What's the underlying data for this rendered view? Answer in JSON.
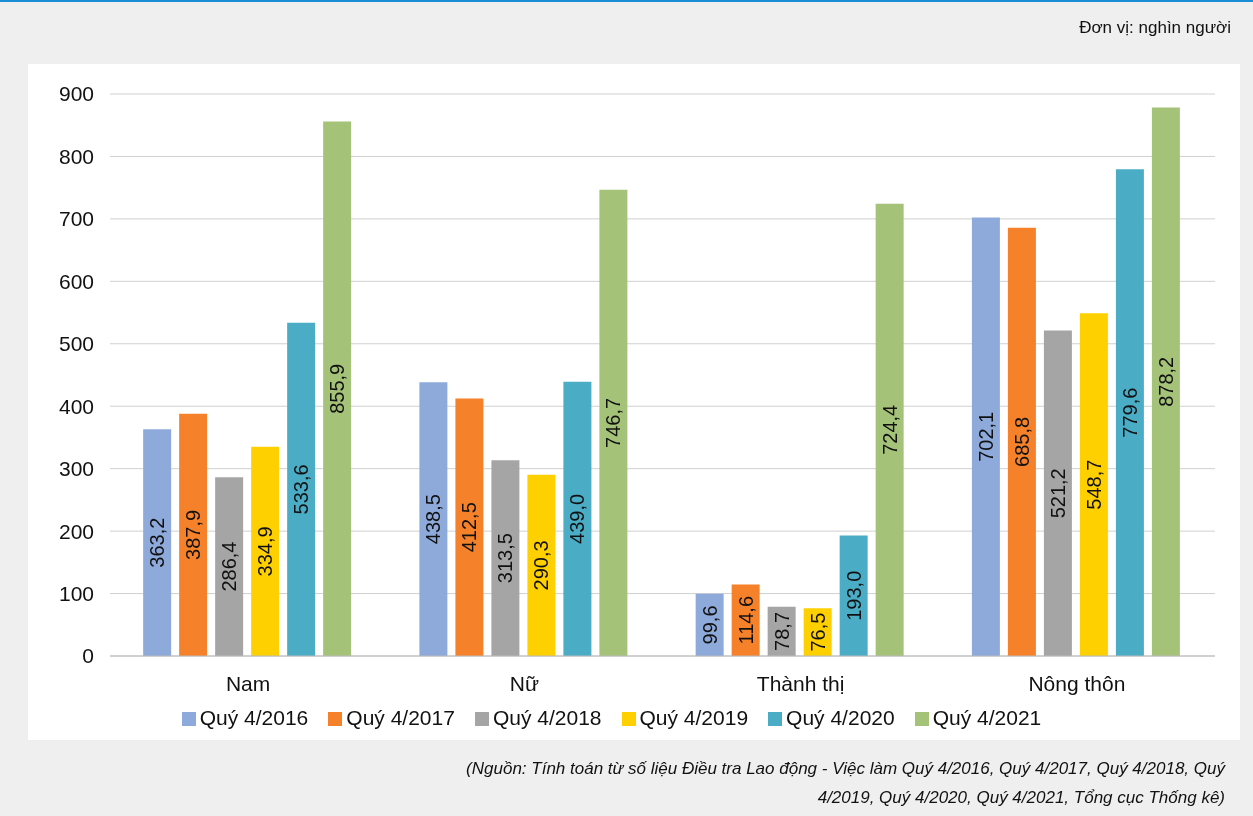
{
  "chart_data": {
    "type": "bar",
    "categories": [
      "Nam",
      "Nữ",
      "Thành thị",
      "Nông thôn"
    ],
    "series": [
      {
        "name": "Quý 4/2016",
        "color": "#8eaadb",
        "values": [
          363.2,
          438.5,
          99.6,
          702.1
        ],
        "value_labels": [
          "363,2",
          "438,5",
          "99,6",
          "702,1"
        ]
      },
      {
        "name": "Quý 4/2017",
        "color": "#f5822a",
        "values": [
          387.9,
          412.5,
          114.6,
          685.8
        ],
        "value_labels": [
          "387,9",
          "412,5",
          "114,6",
          "685,8"
        ]
      },
      {
        "name": "Quý 4/2018",
        "color": "#a5a5a5",
        "values": [
          286.4,
          313.5,
          78.7,
          521.2
        ],
        "value_labels": [
          "286,4",
          "313,5",
          "78,7",
          "521,2"
        ]
      },
      {
        "name": "Quý 4/2019",
        "color": "#ffd000",
        "values": [
          334.9,
          290.3,
          76.5,
          548.7
        ],
        "value_labels": [
          "334,9",
          "290,3",
          "76,5",
          "548,7"
        ]
      },
      {
        "name": "Quý 4/2020",
        "color": "#4bacc6",
        "values": [
          533.6,
          439.0,
          193.0,
          779.6
        ],
        "value_labels": [
          "533,6",
          "439,0",
          "193,0",
          "779,6"
        ]
      },
      {
        "name": "Quý 4/2021",
        "color": "#a5c279",
        "values": [
          855.9,
          746.7,
          724.4,
          878.2
        ],
        "value_labels": [
          "855,9",
          "746,7",
          "724,4",
          "878,2"
        ]
      }
    ],
    "ylim": [
      0,
      900
    ],
    "yticks": [
      0,
      100,
      200,
      300,
      400,
      500,
      600,
      700,
      800,
      900
    ],
    "grid": "y",
    "legend": "bottom",
    "annotations": [
      "Đơn vị: nghìn người",
      "(Nguồn: Tính toán từ số liệu Điều tra Lao động - Việc làm Quý 4/2016, Quý 4/2017, Quý 4/2018, Quý 4/2019, Quý 4/2020, Quý 4/2021, Tổng cục Thống kê)"
    ]
  }
}
